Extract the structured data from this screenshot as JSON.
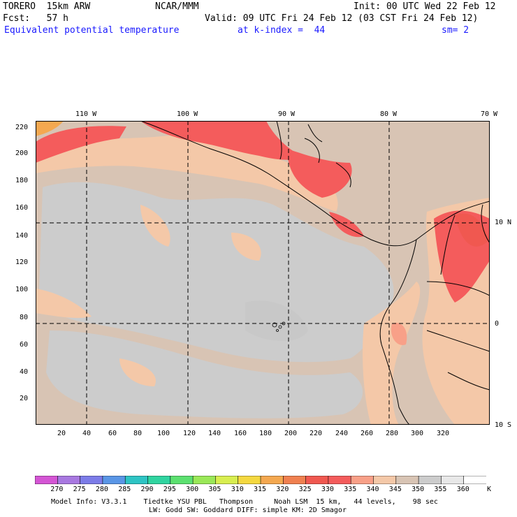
{
  "header": {
    "model": "TORERO  15km ARW",
    "org": "NCAR/MMM",
    "init": "Init: 00 UTC Wed 22 Feb 12",
    "fcst": "Fcst:   57 h",
    "valid": "Valid: 09 UTC Fri 24 Feb 12 (03 CST Fri 24 Feb 12)",
    "field": "Equivalent potential temperature",
    "level": "at k-index =  44",
    "smooth": "sm= 2"
  },
  "map": {
    "lon_labels": [
      "110 W",
      "100 W",
      "90 W",
      "80 W",
      "70 W"
    ],
    "lat_labels": [
      "10 N",
      "0",
      "10 S"
    ],
    "x_ticks": [
      "20",
      "40",
      "60",
      "80",
      "100",
      "120",
      "140",
      "160",
      "180",
      "200",
      "220",
      "240",
      "260",
      "280",
      "300",
      "320"
    ],
    "y_ticks": [
      "220",
      "200",
      "180",
      "160",
      "140",
      "120",
      "100",
      "80",
      "60",
      "40",
      "20"
    ]
  },
  "colorbar": {
    "labels": [
      "270",
      "275",
      "280",
      "285",
      "290",
      "295",
      "300",
      "305",
      "310",
      "315",
      "320",
      "325",
      "330",
      "335",
      "340",
      "345",
      "350",
      "355",
      "360"
    ],
    "unit": "K",
    "colors": [
      "#d455d4",
      "#a878e0",
      "#7c7ce8",
      "#5a96e6",
      "#2ec4c4",
      "#30d4a0",
      "#5ce070",
      "#9ae858",
      "#d8ee50",
      "#f4d840",
      "#f4a850",
      "#f08050",
      "#f05850",
      "#f45c5c",
      "#f8a088",
      "#f4c8a8",
      "#d8c4b4",
      "#cccccc",
      "#e8e8e8",
      "#ffffff"
    ]
  },
  "footer": {
    "line1": "Model Info: V3.3.1    Tiedtke YSU PBL   Thompson     Noah LSM  15 km,   44 levels,    98 sec",
    "line2": "LW: Godd SW: Goddard DIFF: simple KM: 2D Smagor"
  }
}
